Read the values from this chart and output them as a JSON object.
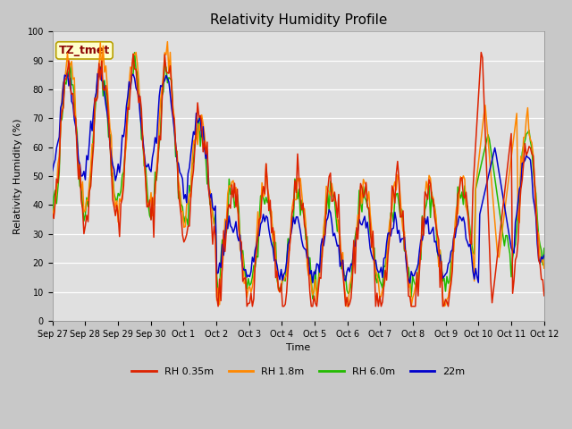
{
  "title": "Relativity Humidity Profile",
  "xlabel": "Time",
  "ylabel": "Relativity Humidity (%)",
  "ylim": [
    0,
    100
  ],
  "fig_bg_color": "#c8c8c8",
  "plot_bg_color": "#e0e0e0",
  "annotation_text": "TZ_tmet",
  "annotation_bg": "#ffffcc",
  "annotation_border": "#b8a000",
  "annotation_text_color": "#8b0000",
  "legend_entries": [
    "RH 0.35m",
    "RH 1.8m",
    "RH 6.0m",
    "22m"
  ],
  "line_colors": [
    "#dd2200",
    "#ff8800",
    "#22bb00",
    "#0000cc"
  ],
  "xtick_labels": [
    "Sep 27",
    "Sep 28",
    "Sep 29",
    "Sep 30",
    "Oct 1",
    "Oct 2",
    "Oct 3",
    "Oct 4",
    "Oct 5",
    "Oct 6",
    "Oct 7",
    "Oct 8",
    "Oct 9",
    "Oct 10",
    "Oct 11",
    "Oct 12"
  ],
  "ytick_labels": [
    "0",
    "10",
    "20",
    "30",
    "40",
    "50",
    "60",
    "70",
    "80",
    "90",
    "100"
  ],
  "num_days": 15,
  "hours_per_day": 24,
  "title_fontsize": 11,
  "axis_label_fontsize": 8,
  "tick_fontsize": 7,
  "legend_fontsize": 8
}
